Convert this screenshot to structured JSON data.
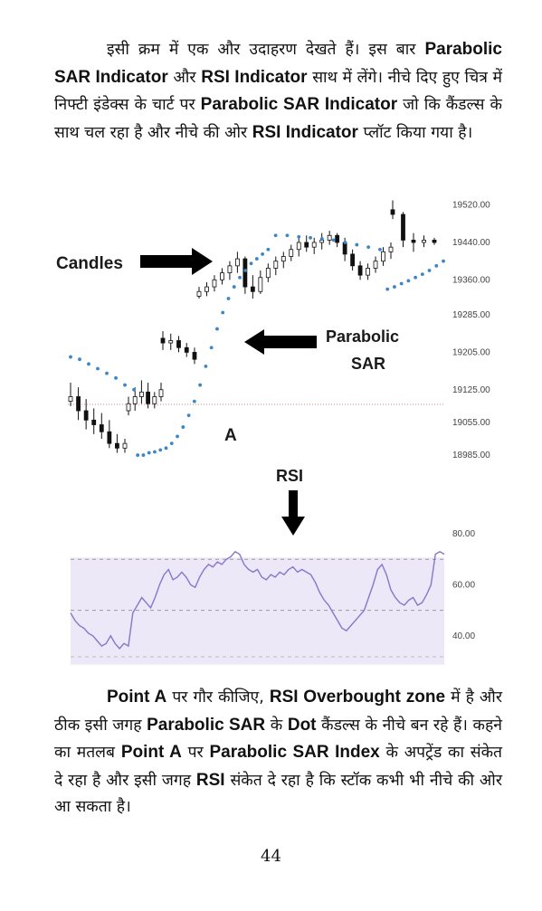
{
  "paragraph1": [
    {
      "t": "इसी क्रम में एक और उदाहरण देखते हैं। इस बार "
    },
    {
      "t": "Parabolic SAR Indicator",
      "b": true
    },
    {
      "t": " और "
    },
    {
      "t": "RSI Indicator",
      "b": true
    },
    {
      "t": " साथ में लेंगे। नीचे दिए हुए चित्र में निफ्टी इंडेक्स के चार्ट पर "
    },
    {
      "t": "Parabolic SAR Indicator",
      "b": true
    },
    {
      "t": " जो कि कैंडल्स के साथ चल रहा है और नीचे की ओर "
    },
    {
      "t": "RSI Indicator",
      "b": true
    },
    {
      "t": " प्लॉट किया गया है।"
    }
  ],
  "paragraph2": [
    {
      "t": "Point A",
      "b": true
    },
    {
      "t": " पर गौर कीजिए, "
    },
    {
      "t": "RSI Overbought zone",
      "b": true
    },
    {
      "t": " में है और ठीक इसी जगह "
    },
    {
      "t": "Parabolic SAR",
      "b": true
    },
    {
      "t": " के "
    },
    {
      "t": "Dot",
      "b": true
    },
    {
      "t": " कैंडल्स के नीचे बन रहे हैं। कहने का मतलब "
    },
    {
      "t": "Point A",
      "b": true
    },
    {
      "t": " पर "
    },
    {
      "t": "Parabolic SAR Index",
      "b": true
    },
    {
      "t": " के अपट्रेंड का संकेत दे रहा है और इसी जगह "
    },
    {
      "t": "RSI",
      "b": true
    },
    {
      "t": " संकेत दे रहा है कि स्टॉक कभी भी नीचे की ओर आ सकता है।"
    }
  ],
  "page_number": "44",
  "colors": {
    "candle": "#111111",
    "sar": "#3a86c8",
    "rsi_line": "#8877c9",
    "rsi_band": "#ece8f8",
    "guide": "#999999"
  },
  "annotations": {
    "candles": "Candles",
    "sar_line1": "Parabolic",
    "sar_line2": "SAR",
    "point_a": "A",
    "rsi": "RSI"
  },
  "chart_data": [
    {
      "type": "line",
      "ylim": [
        18960,
        19560
      ],
      "y_ticks": [
        "19520.00",
        "19440.00",
        "19360.00",
        "19285.00",
        "19205.00",
        "19125.00",
        "19055.00",
        "18985.00"
      ],
      "y_tick_values": [
        19520,
        19440,
        19360,
        19285,
        19205,
        19125,
        19055,
        18985
      ],
      "series": [
        {
          "kind": "candles",
          "ohlc": [
            [
              19100,
              19140,
              19090,
              19110
            ],
            [
              19110,
              19130,
              19060,
              19080
            ],
            [
              19080,
              19105,
              19040,
              19060
            ],
            [
              19060,
              19085,
              19030,
              19050
            ],
            [
              19050,
              19075,
              19020,
              19035
            ],
            [
              19035,
              19060,
              19000,
              19010
            ],
            [
              19010,
              19030,
              18990,
              19000
            ],
            [
              19000,
              19020,
              18990,
              19010
            ],
            [
              19080,
              19110,
              19070,
              19095
            ],
            [
              19095,
              19130,
              19080,
              19110
            ],
            [
              19110,
              19145,
              19095,
              19120
            ],
            [
              19120,
              19140,
              19085,
              19095
            ],
            [
              19095,
              19120,
              19085,
              19110
            ],
            [
              19110,
              19140,
              19100,
              19125
            ],
            [
              19235,
              19250,
              19210,
              19225
            ],
            [
              19225,
              19245,
              19210,
              19230
            ],
            [
              19230,
              19240,
              19205,
              19215
            ],
            [
              19215,
              19225,
              19195,
              19205
            ],
            [
              19205,
              19215,
              19180,
              19190
            ],
            [
              19325,
              19345,
              19320,
              19335
            ],
            [
              19335,
              19355,
              19325,
              19345
            ],
            [
              19345,
              19370,
              19335,
              19360
            ],
            [
              19360,
              19385,
              19350,
              19375
            ],
            [
              19375,
              19400,
              19360,
              19390
            ],
            [
              19390,
              19420,
              19375,
              19405
            ],
            [
              19405,
              19410,
              19330,
              19345
            ],
            [
              19345,
              19370,
              19320,
              19335
            ],
            [
              19335,
              19380,
              19330,
              19365
            ],
            [
              19365,
              19395,
              19355,
              19385
            ],
            [
              19385,
              19410,
              19370,
              19400
            ],
            [
              19400,
              19420,
              19385,
              19410
            ],
            [
              19410,
              19435,
              19400,
              19425
            ],
            [
              19425,
              19450,
              19410,
              19440
            ],
            [
              19440,
              19455,
              19420,
              19430
            ],
            [
              19430,
              19450,
              19415,
              19440
            ],
            [
              19440,
              19460,
              19425,
              19445
            ],
            [
              19445,
              19465,
              19435,
              19455
            ],
            [
              19455,
              19460,
              19430,
              19440
            ],
            [
              19440,
              19450,
              19400,
              19415
            ],
            [
              19415,
              19425,
              19380,
              19390
            ],
            [
              19390,
              19400,
              19360,
              19370
            ],
            [
              19370,
              19395,
              19360,
              19385
            ],
            [
              19385,
              19410,
              19375,
              19400
            ],
            [
              19400,
              19430,
              19390,
              19420
            ],
            [
              19420,
              19440,
              19405,
              19430
            ],
            [
              19510,
              19530,
              19490,
              19500
            ],
            [
              19500,
              19505,
              19430,
              19445
            ],
            [
              19445,
              19460,
              19420,
              19440
            ],
            [
              19440,
              19455,
              19430,
              19445
            ],
            [
              19445,
              19450,
              19435,
              19440
            ]
          ]
        },
        {
          "name": "Parabolic SAR",
          "kind": "dots",
          "segments": [
            {
              "x0": 0.0,
              "x1": 0.17,
              "y": [
                19195,
                19190,
                19180,
                19170,
                19160,
                19150,
                19135,
                19125
              ]
            },
            {
              "x0": 0.18,
              "x1": 0.53,
              "y": [
                18985,
                18985,
                18990,
                18992,
                18996,
                19000,
                19010,
                19025,
                19045,
                19070,
                19100,
                19135,
                19175,
                19215,
                19255,
                19290,
                19320,
                19345,
                19365,
                19380,
                19395,
                19405,
                19415,
                19425
              ]
            },
            {
              "x0": 0.55,
              "x1": 0.83,
              "y": [
                19455,
                19455,
                19452,
                19450,
                19448,
                19445,
                19440,
                19435,
                19430,
                19425
              ]
            },
            {
              "x0": 0.85,
              "x1": 1.0,
              "y": [
                19340,
                19345,
                19352,
                19358,
                19365,
                19372,
                19380,
                19390,
                19400
              ]
            }
          ]
        }
      ]
    },
    {
      "type": "line",
      "title": "",
      "ylim": [
        30,
        85
      ],
      "y_ticks": [
        "80.00",
        "60.00",
        "40.00"
      ],
      "y_tick_values": [
        80,
        60,
        40
      ],
      "band": [
        50,
        70
      ],
      "series": [
        {
          "name": "RSI",
          "values": [
            49,
            46,
            44,
            43,
            41,
            40,
            38,
            36,
            37,
            40,
            37,
            35,
            37,
            36,
            49,
            52,
            55,
            53,
            51,
            55,
            60,
            64,
            66,
            62,
            63,
            65,
            63,
            60,
            59,
            63,
            66,
            68,
            67,
            69,
            68,
            70,
            71,
            73,
            72,
            68,
            66,
            65,
            66,
            63,
            62,
            64,
            63,
            65,
            64,
            66,
            67,
            65,
            66,
            65,
            64,
            61,
            57,
            54,
            52,
            49,
            46,
            43,
            42,
            44,
            46,
            48,
            50,
            55,
            60,
            66,
            68,
            64,
            58,
            55,
            53,
            52,
            54,
            55,
            52,
            53,
            56,
            60,
            72,
            73,
            72
          ],
          "x_frac_ends": [
            0.0,
            1.0
          ]
        }
      ]
    }
  ]
}
